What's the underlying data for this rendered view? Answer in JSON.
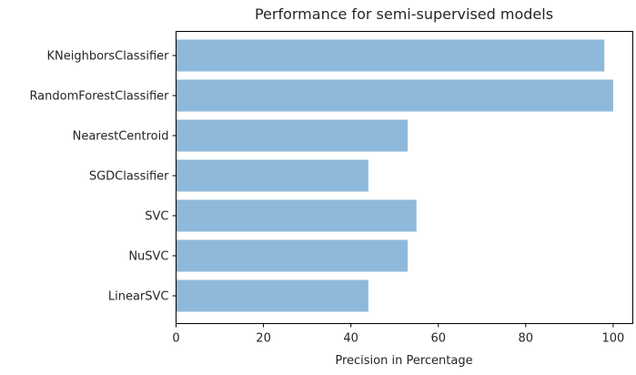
{
  "chart_data": {
    "type": "bar",
    "orientation": "horizontal",
    "title": "Performance for semi-supervised models",
    "xlabel": "Precision in Percentage",
    "ylabel": "",
    "categories": [
      "KNeighborsClassifier",
      "RandomForestClassifier",
      "NearestCentroid",
      "SGDClassifier",
      "SVC",
      "NuSVC",
      "LinearSVC"
    ],
    "values": [
      98,
      100,
      53,
      44,
      55,
      53,
      44
    ],
    "xlim": [
      0,
      104.5
    ],
    "x_ticks": [
      0,
      20,
      40,
      60,
      80,
      100
    ],
    "x_tick_labels": [
      "0",
      "20",
      "40",
      "60",
      "80",
      "100"
    ],
    "grid": false,
    "bar_color": "#8fb9da"
  }
}
